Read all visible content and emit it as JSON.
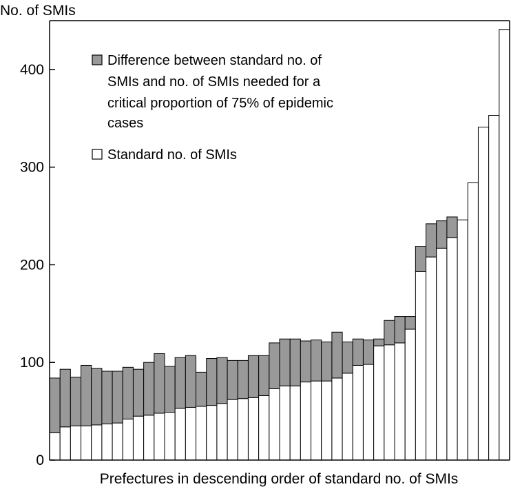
{
  "chart_data": {
    "type": "bar",
    "stacked": true,
    "ylabel": "No. of SMIs",
    "xlabel": "Prefectures in descending order of standard no. of SMIs",
    "ylim": [
      0,
      450
    ],
    "yticks": [
      0,
      100,
      200,
      300,
      400
    ],
    "legend_position": "top-left",
    "series": [
      {
        "name": "Standard no. of SMIs",
        "color": "#ffffff",
        "values": [
          28,
          34,
          35,
          35,
          36,
          37,
          38,
          42,
          45,
          46,
          48,
          49,
          53,
          54,
          55,
          56,
          58,
          62,
          63,
          64,
          66,
          73,
          76,
          76,
          80,
          81,
          81,
          84,
          89,
          97,
          98,
          117,
          118,
          120,
          134,
          193,
          208,
          217,
          228,
          246,
          284,
          341,
          353,
          441
        ]
      },
      {
        "name": "Difference between standard no. of SMIs and no. of SMIs needed for a critical proportion of 75% of epidemic cases",
        "color": "#999999",
        "values": [
          56,
          59,
          50,
          62,
          58,
          54,
          53,
          53,
          48,
          54,
          61,
          47,
          52,
          53,
          35,
          48,
          47,
          40,
          39,
          43,
          41,
          47,
          48,
          48,
          42,
          42,
          40,
          47,
          32,
          27,
          25,
          7,
          25,
          27,
          13,
          26,
          34,
          28,
          21,
          0,
          0,
          0,
          0,
          0
        ]
      }
    ]
  }
}
